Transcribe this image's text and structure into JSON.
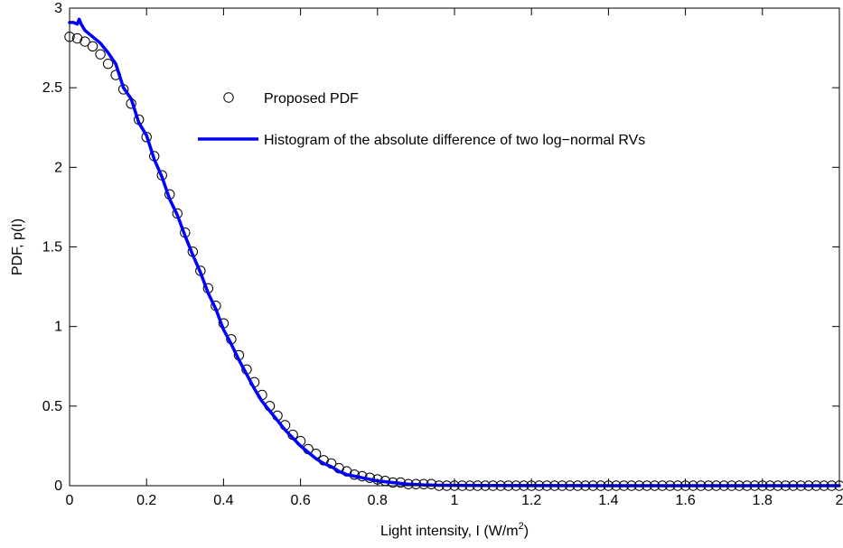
{
  "chart_data": {
    "type": "line",
    "title": "",
    "xlabel": "Light intensity, I (W/m",
    "xlabel_superscript": "2",
    "xlabel_suffix": ")",
    "ylabel": "PDF, p(I)",
    "xlim": [
      0,
      2
    ],
    "ylim": [
      0,
      3
    ],
    "xticks": [
      0,
      0.2,
      0.4,
      0.6,
      0.8,
      1,
      1.2,
      1.4,
      1.6,
      1.8,
      2
    ],
    "xtick_labels": [
      "0",
      "0.2",
      "0.4",
      "0.6",
      "0.8",
      "1",
      "1.2",
      "1.4",
      "1.6",
      "1.8",
      "2"
    ],
    "yticks": [
      0,
      0.5,
      1,
      1.5,
      2,
      2.5,
      3
    ],
    "ytick_labels": [
      "0",
      "0.5",
      "1",
      "1.5",
      "2",
      "2.5",
      "3"
    ],
    "grid": false,
    "legend_position": "top-center",
    "series": [
      {
        "name": "Proposed PDF",
        "style": "markers",
        "marker": "open-circle",
        "color": "#000000",
        "x": [
          0,
          0.02,
          0.04,
          0.06,
          0.08,
          0.1,
          0.12,
          0.14,
          0.16,
          0.18,
          0.2,
          0.22,
          0.24,
          0.26,
          0.28,
          0.3,
          0.32,
          0.34,
          0.36,
          0.38,
          0.4,
          0.42,
          0.44,
          0.46,
          0.48,
          0.5,
          0.52,
          0.54,
          0.56,
          0.58,
          0.6,
          0.62,
          0.64,
          0.66,
          0.68,
          0.7,
          0.72,
          0.74,
          0.76,
          0.78,
          0.8,
          0.82,
          0.84,
          0.86,
          0.88,
          0.9,
          0.92,
          0.94,
          0.96,
          0.98,
          1,
          1.02,
          1.04,
          1.06,
          1.08,
          1.1,
          1.12,
          1.14,
          1.16,
          1.18,
          1.2,
          1.22,
          1.24,
          1.26,
          1.28,
          1.3,
          1.32,
          1.34,
          1.36,
          1.38,
          1.4,
          1.42,
          1.44,
          1.46,
          1.48,
          1.5,
          1.52,
          1.54,
          1.56,
          1.58,
          1.6,
          1.62,
          1.64,
          1.66,
          1.68,
          1.7,
          1.72,
          1.74,
          1.76,
          1.78,
          1.8,
          1.82,
          1.84,
          1.86,
          1.88,
          1.9,
          1.92,
          1.94,
          1.96,
          1.98,
          2
        ],
        "y": [
          2.82,
          2.81,
          2.79,
          2.76,
          2.71,
          2.65,
          2.58,
          2.49,
          2.4,
          2.3,
          2.19,
          2.07,
          1.95,
          1.83,
          1.71,
          1.59,
          1.47,
          1.35,
          1.24,
          1.13,
          1.02,
          0.92,
          0.82,
          0.73,
          0.65,
          0.57,
          0.5,
          0.44,
          0.38,
          0.32,
          0.28,
          0.23,
          0.2,
          0.16,
          0.14,
          0.11,
          0.09,
          0.07,
          0.06,
          0.05,
          0.04,
          0.03,
          0.02,
          0.02,
          0.01,
          0.01,
          0.01,
          0.01,
          0,
          0,
          0,
          0,
          0,
          0,
          0,
          0,
          0,
          0,
          0,
          0,
          0,
          0,
          0,
          0,
          0,
          0,
          0,
          0,
          0,
          0,
          0,
          0,
          0,
          0,
          0,
          0,
          0,
          0,
          0,
          0,
          0,
          0,
          0,
          0,
          0,
          0,
          0,
          0,
          0,
          0,
          0,
          0,
          0,
          0,
          0,
          0,
          0,
          0,
          0,
          0,
          0
        ]
      },
      {
        "name": "Histogram of the absolute difference of two log−normal RVs",
        "style": "line",
        "color": "#0000ff",
        "x": [
          0,
          0.01,
          0.02,
          0.025,
          0.03,
          0.04,
          0.06,
          0.08,
          0.1,
          0.12,
          0.14,
          0.16,
          0.18,
          0.2,
          0.22,
          0.24,
          0.26,
          0.28,
          0.3,
          0.32,
          0.34,
          0.36,
          0.38,
          0.4,
          0.42,
          0.44,
          0.46,
          0.48,
          0.5,
          0.52,
          0.54,
          0.56,
          0.58,
          0.6,
          0.62,
          0.64,
          0.66,
          0.68,
          0.7,
          0.72,
          0.74,
          0.76,
          0.78,
          0.8,
          0.84,
          0.88,
          0.92,
          0.96,
          1,
          1.2,
          1.4,
          1.6,
          1.8,
          2
        ],
        "y": [
          2.91,
          2.91,
          2.9,
          2.93,
          2.9,
          2.86,
          2.82,
          2.78,
          2.72,
          2.65,
          2.5,
          2.43,
          2.28,
          2.2,
          2.05,
          1.94,
          1.8,
          1.7,
          1.57,
          1.45,
          1.34,
          1.21,
          1.11,
          0.98,
          0.89,
          0.79,
          0.7,
          0.61,
          0.53,
          0.47,
          0.41,
          0.35,
          0.3,
          0.25,
          0.21,
          0.17,
          0.14,
          0.12,
          0.09,
          0.07,
          0.06,
          0.05,
          0.04,
          0.03,
          0.02,
          0.01,
          0.005,
          0.003,
          0.002,
          0.001,
          0,
          0,
          0,
          0
        ]
      }
    ]
  }
}
